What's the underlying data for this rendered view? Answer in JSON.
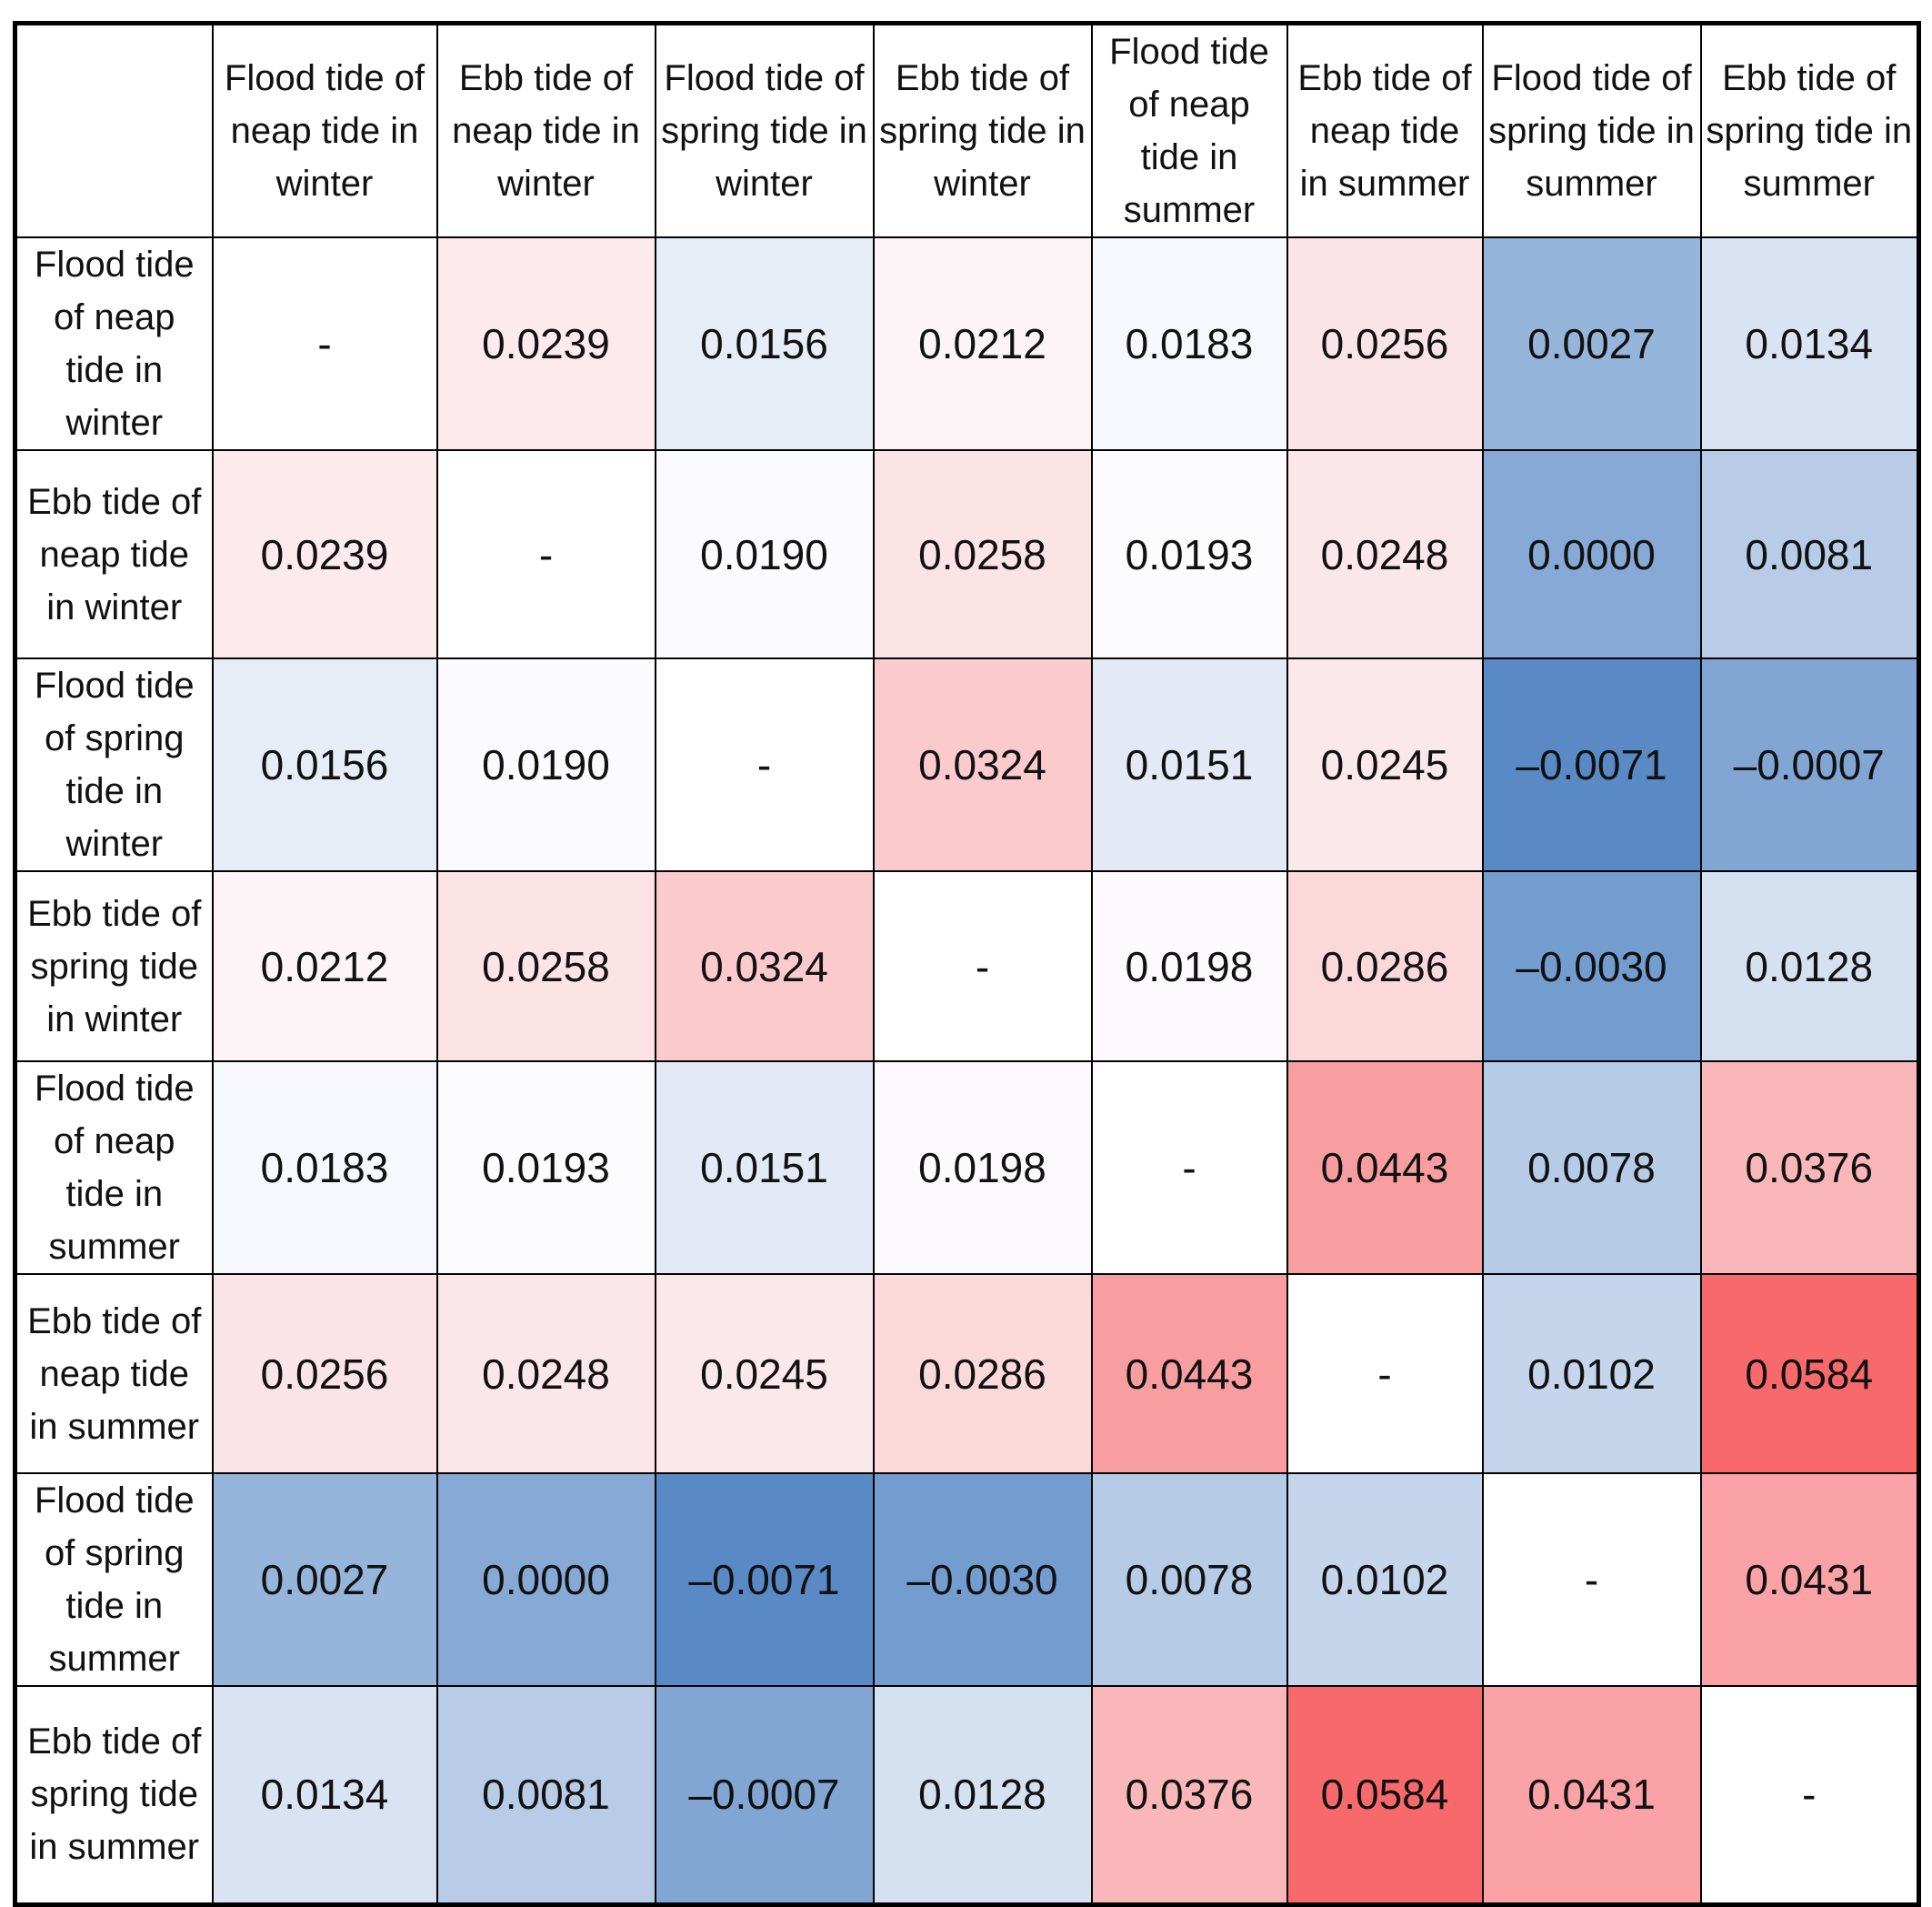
{
  "table": {
    "columns": [
      "Flood tide of neap tide in winter",
      "Ebb tide of neap tide in winter",
      "Flood tide of spring tide in winter",
      "Ebb tide of spring tide in winter",
      "Flood tide of neap tide in summer",
      "Ebb tide of neap tide in summer",
      "Flood tide of spring tide in summer",
      "Ebb tide of spring tide in summer"
    ],
    "rows": [
      {
        "label": "Flood tide of neap tide in winter",
        "cells": [
          "-",
          "0.0239",
          "0.0156",
          "0.0212",
          "0.0183",
          "0.0256",
          "0.0027",
          "0.0134"
        ]
      },
      {
        "label": "Ebb tide of neap tide in winter",
        "cells": [
          "0.0239",
          "-",
          "0.0190",
          "0.0258",
          "0.0193",
          "0.0248",
          "0.0000",
          "0.0081"
        ]
      },
      {
        "label": "Flood tide of spring tide in winter",
        "cells": [
          "0.0156",
          "0.0190",
          "-",
          "0.0324",
          "0.0151",
          "0.0245",
          "–0.0071",
          "–0.0007"
        ]
      },
      {
        "label": "Ebb tide of spring tide in winter",
        "cells": [
          "0.0212",
          "0.0258",
          "0.0324",
          "-",
          "0.0198",
          "0.0286",
          "–0.0030",
          "0.0128"
        ]
      },
      {
        "label": "Flood tide of neap tide in summer",
        "cells": [
          "0.0183",
          "0.0193",
          "0.0151",
          "0.0198",
          "-",
          "0.0443",
          "0.0078",
          "0.0376"
        ]
      },
      {
        "label": "Ebb tide of neap tide in summer",
        "cells": [
          "0.0256",
          "0.0248",
          "0.0245",
          "0.0286",
          "0.0443",
          "-",
          "0.0102",
          "0.0584"
        ]
      },
      {
        "label": "Flood tide of spring tide in summer",
        "cells": [
          "0.0027",
          "0.0000",
          "–0.0071",
          "–0.0030",
          "0.0078",
          "0.0102",
          "-",
          "0.0431"
        ]
      },
      {
        "label": "Ebb tide of spring tide in summer",
        "cells": [
          "0.0134",
          "0.0081",
          "–0.0007",
          "0.0128",
          "0.0376",
          "0.0584",
          "0.0431",
          "-"
        ]
      }
    ]
  }
}
